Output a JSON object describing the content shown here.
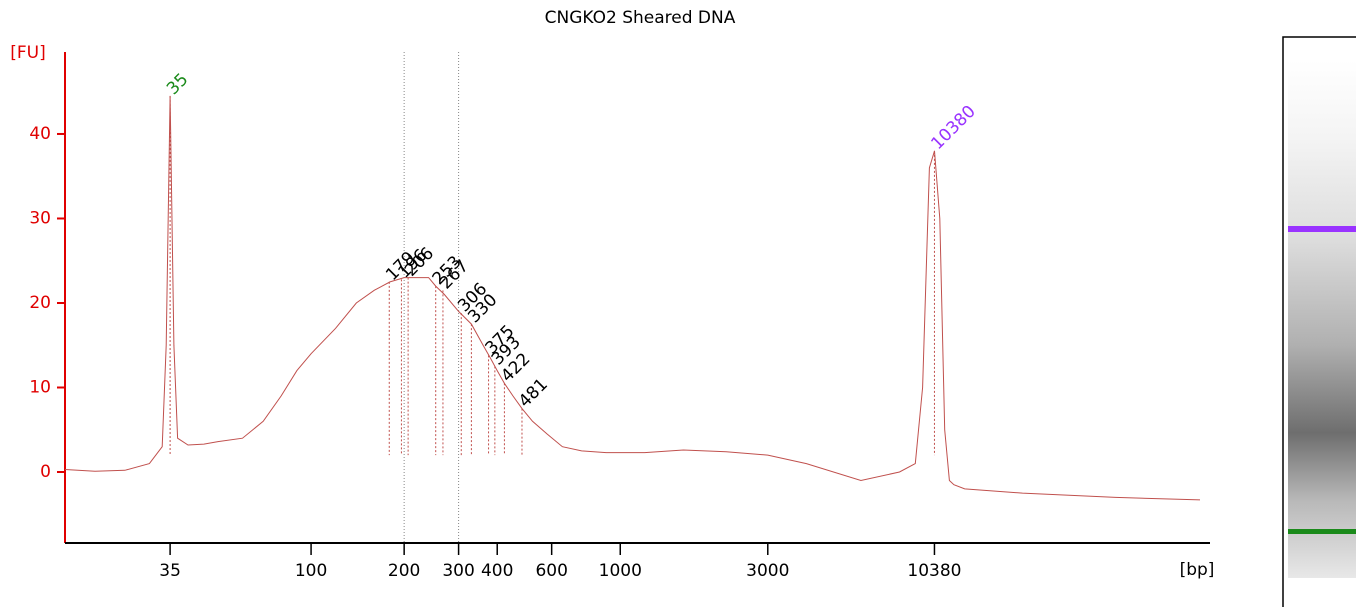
{
  "chart_data": {
    "type": "line",
    "title": "CNGKO2 Sheared DNA",
    "y_label": "[FU]",
    "x_label": "[bp]",
    "x_scale": "log",
    "color": "#c0504d",
    "axis_color": "#e00000",
    "x": [
      16,
      20,
      25,
      30,
      33,
      34,
      35,
      36,
      37,
      40,
      45,
      50,
      60,
      70,
      80,
      90,
      100,
      120,
      140,
      160,
      180,
      200,
      220,
      240,
      253,
      270,
      300,
      330,
      360,
      380,
      400,
      422,
      450,
      481,
      520,
      580,
      650,
      750,
      900,
      1200,
      1600,
      2200,
      3000,
      4000,
      6000,
      8000,
      9000,
      9500,
      10000,
      10380,
      10800,
      11200,
      11600,
      12000,
      13000,
      20000,
      40000,
      75000
    ],
    "values": [
      0.3,
      0.1,
      0.2,
      1,
      3,
      15,
      44.5,
      15,
      4,
      3.2,
      3.3,
      3.6,
      4,
      6,
      9,
      12,
      14,
      17,
      20,
      21.5,
      22.5,
      23,
      23,
      23,
      22,
      21,
      19,
      17.5,
      15,
      13.5,
      12,
      10.5,
      9,
      7.5,
      6,
      4.5,
      3,
      2.5,
      2.3,
      2.3,
      2.6,
      2.4,
      2,
      1,
      -1,
      0,
      1,
      10,
      36,
      38,
      30,
      5,
      -1,
      -1.5,
      -2,
      -2.5,
      -3,
      -3.3
    ],
    "xlim": [
      16,
      75000
    ],
    "ylim": [
      -8.4,
      49.7
    ],
    "xticks": [
      35,
      100,
      200,
      300,
      400,
      600,
      1000,
      3000,
      10380
    ],
    "yticks": [
      0,
      10,
      20,
      30,
      40
    ],
    "region_lines": [
      200,
      300
    ],
    "peaks": {
      "x": [
        35,
        179,
        196,
        206,
        253,
        267,
        306,
        330,
        375,
        393,
        422,
        481,
        10380
      ],
      "y": [
        44.5,
        22.5,
        22.8,
        23,
        22,
        21.5,
        18.8,
        17.5,
        13.8,
        12.5,
        10.5,
        7.5,
        38
      ],
      "colors": [
        "#1a8a1a",
        "#000000",
        "#000000",
        "#000000",
        "#000000",
        "#000000",
        "#000000",
        "#000000",
        "#000000",
        "#000000",
        "#000000",
        "#000000",
        "#9933ff"
      ]
    }
  }
}
